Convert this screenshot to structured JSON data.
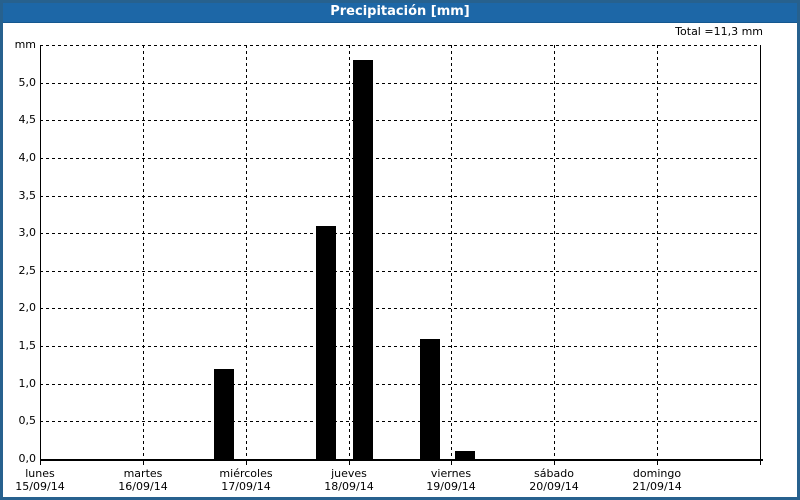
{
  "window": {
    "title": "Precipitación [mm]"
  },
  "summary": {
    "total_label": "Total =11,3 mm"
  },
  "colors": {
    "titlebar": "#1d67a7",
    "border": "#27618e",
    "bar": "#000000",
    "background": "#ffffff",
    "grid": "#000000",
    "title_text": "#ffffff"
  },
  "chart_data": {
    "type": "bar",
    "title": "Precipitación [mm]",
    "unit": "mm",
    "total_mm": 11.3,
    "legend_position": "none",
    "grid": "dashed",
    "y_axis": {
      "min": 0,
      "max": 5.5,
      "step": 0.5,
      "top_unit_label": "mm",
      "ticks": [
        {
          "value": 0.0,
          "label": "0,0"
        },
        {
          "value": 0.5,
          "label": "0,5"
        },
        {
          "value": 1.0,
          "label": "1,0"
        },
        {
          "value": 1.5,
          "label": "1,5"
        },
        {
          "value": 2.0,
          "label": "2,0"
        },
        {
          "value": 2.5,
          "label": "2,5"
        },
        {
          "value": 3.0,
          "label": "3,0"
        },
        {
          "value": 3.5,
          "label": "3,5"
        },
        {
          "value": 4.0,
          "label": "4,0"
        },
        {
          "value": 4.5,
          "label": "4,5"
        },
        {
          "value": 5.0,
          "label": "5,0"
        },
        {
          "value": 5.5,
          "label": "mm"
        }
      ]
    },
    "x_axis": {
      "days": [
        {
          "weekday": "lunes",
          "date": "15/09/14"
        },
        {
          "weekday": "martes",
          "date": "16/09/14"
        },
        {
          "weekday": "miércoles",
          "date": "17/09/14"
        },
        {
          "weekday": "jueves",
          "date": "18/09/14"
        },
        {
          "weekday": "viernes",
          "date": "19/09/14"
        },
        {
          "weekday": "sábado",
          "date": "20/09/14"
        },
        {
          "weekday": "domingo",
          "date": "21/09/14"
        }
      ]
    },
    "bars": [
      {
        "day_offset": 1.79,
        "value": 1.2
      },
      {
        "day_offset": 2.78,
        "value": 3.1
      },
      {
        "day_offset": 3.14,
        "value": 5.3
      },
      {
        "day_offset": 3.79,
        "value": 1.6
      },
      {
        "day_offset": 4.13,
        "value": 0.1
      }
    ],
    "bar_width_days": 0.195
  }
}
